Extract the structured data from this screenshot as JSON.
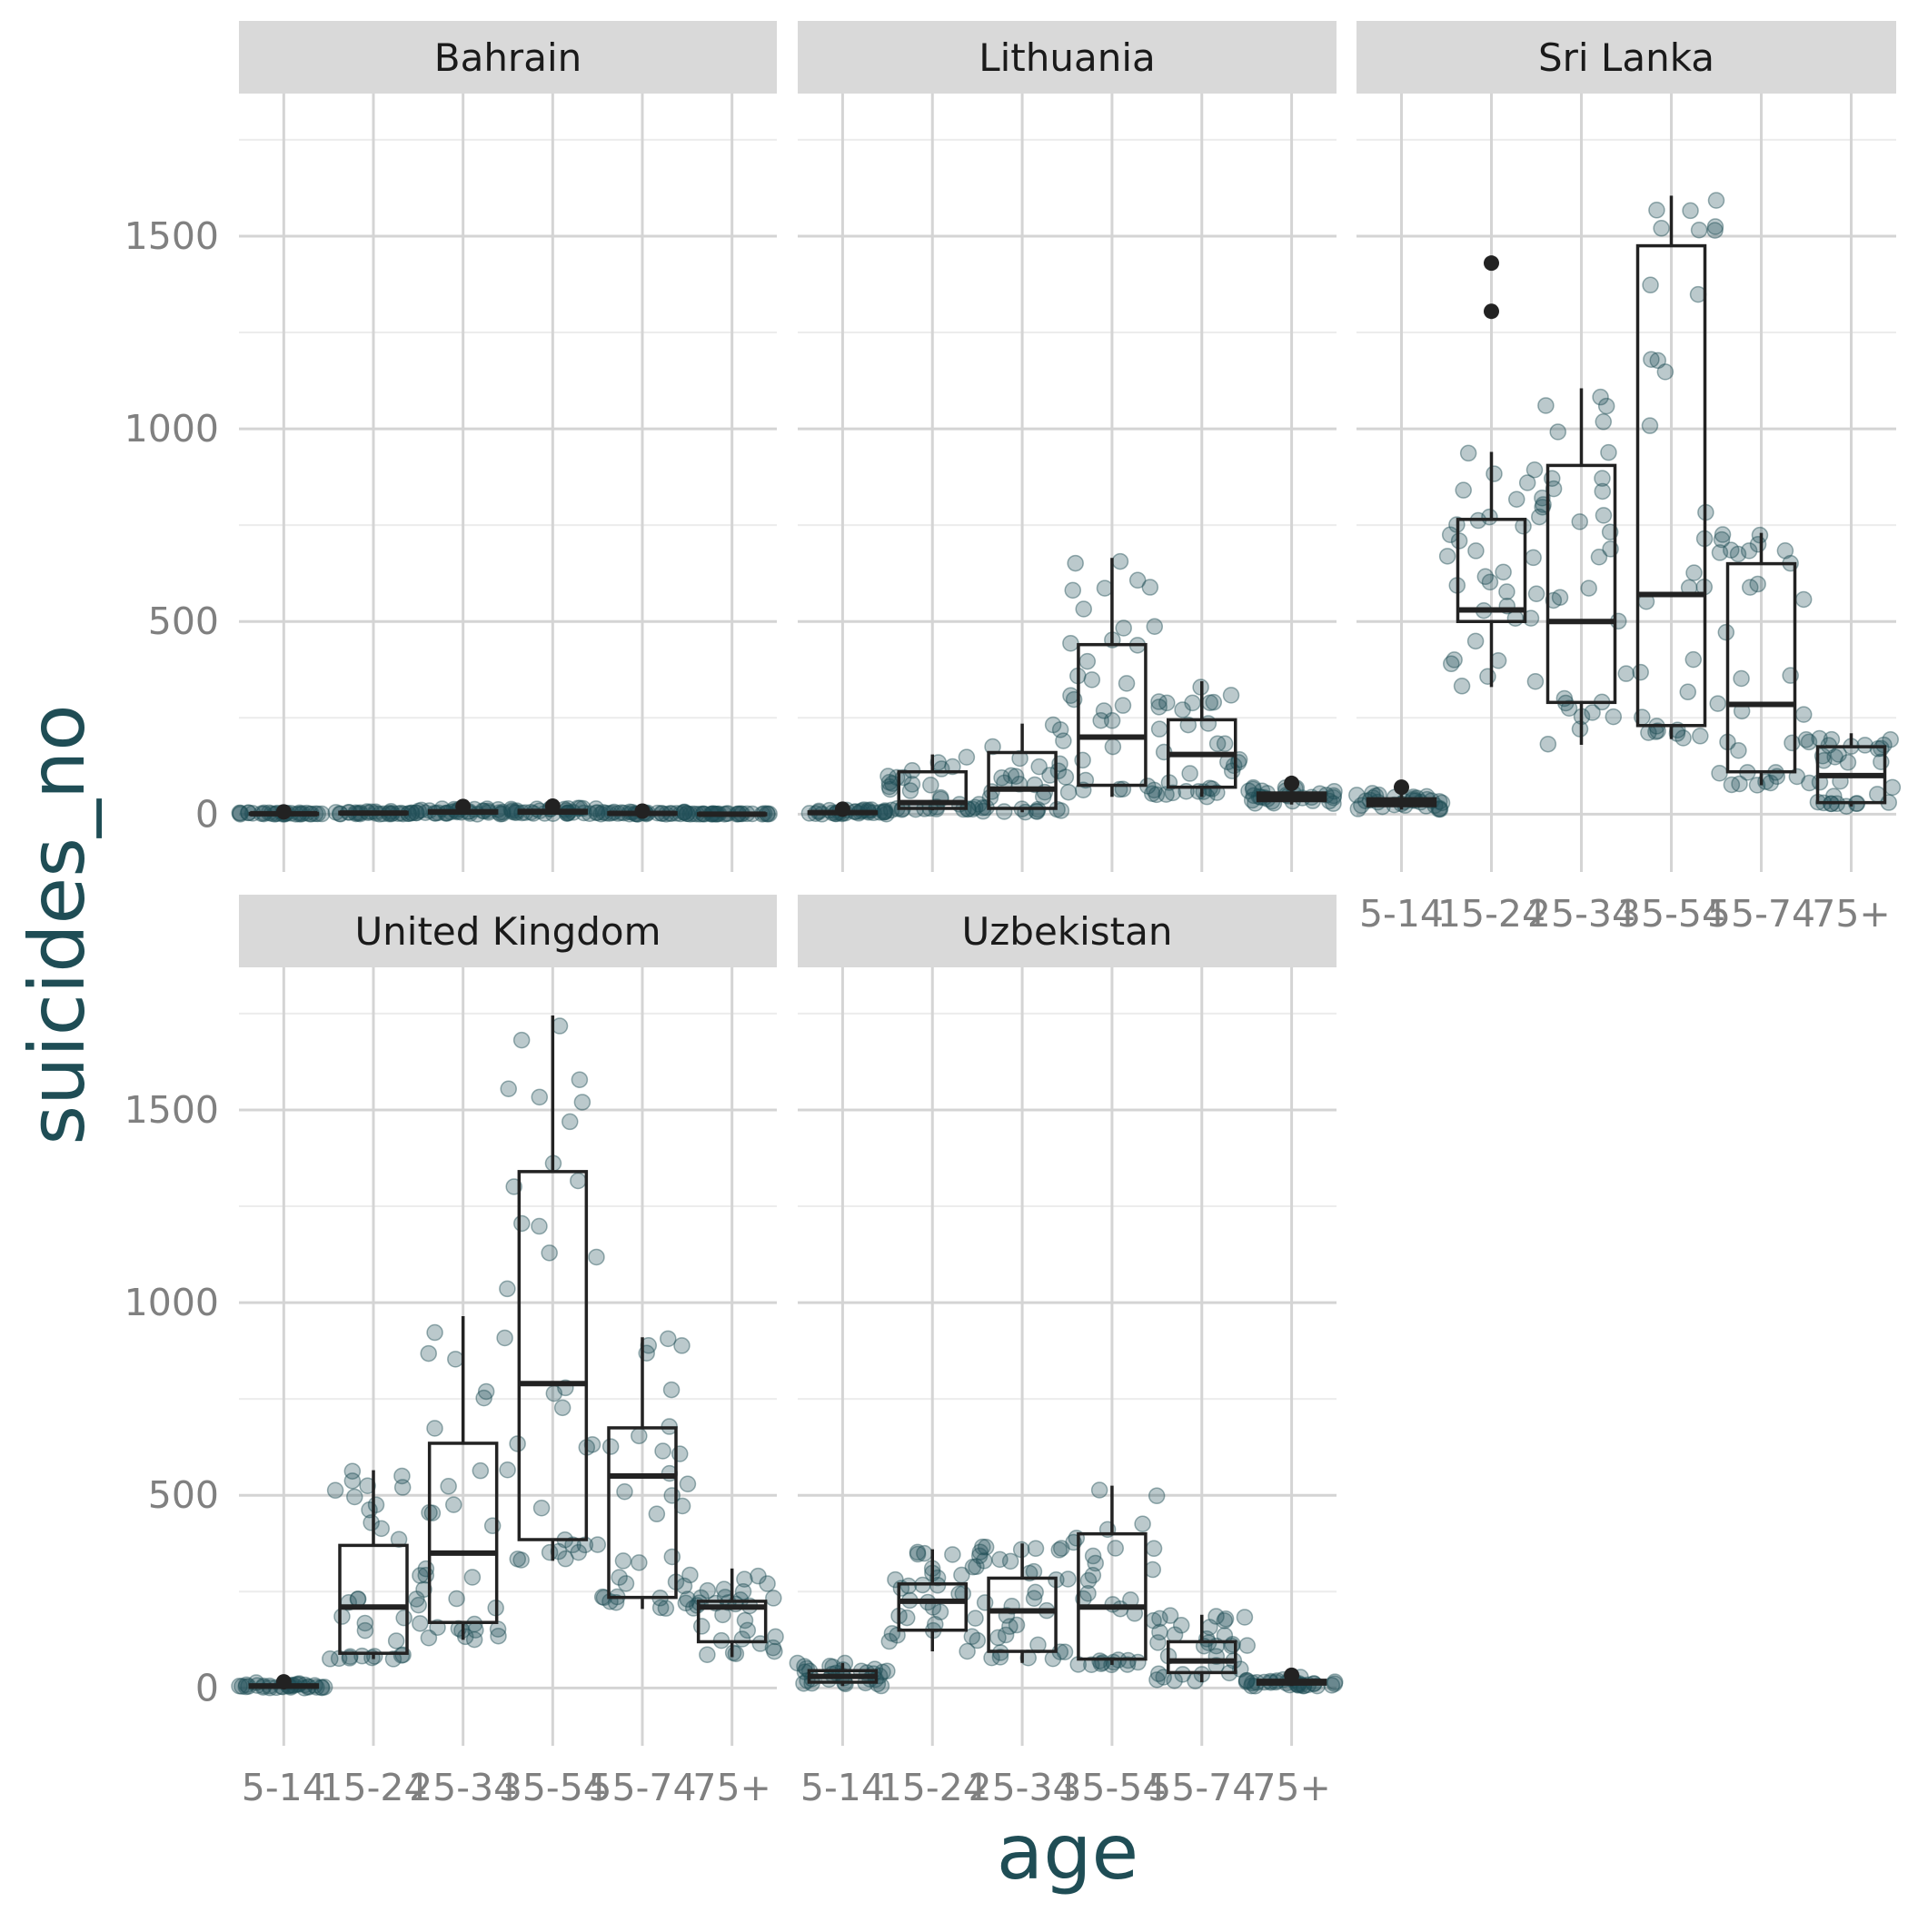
{
  "chart_data": {
    "type": "box",
    "style": "faceted boxplot with jittered points",
    "xlabel": "age",
    "ylabel": "suicides_no",
    "categories": [
      "5-14",
      "15-24",
      "25-34",
      "35-54",
      "55-74",
      "75+"
    ],
    "ylim": [
      -150,
      1870
    ],
    "yticks": [
      0,
      500,
      1000,
      1500
    ],
    "grid": true,
    "legend": "none",
    "colors": {
      "points": "#1f4d55",
      "box": "#222222",
      "strip_bg": "#d9d9d9",
      "grid_major": "#d4d4d4",
      "grid_minor": "#ececec",
      "axis_title": "#1f4d55",
      "tick_text": "#808080"
    },
    "facets": [
      {
        "name": "Bahrain",
        "boxes": [
          {
            "age": "5-14",
            "q1": 0,
            "median": 1,
            "q3": 2,
            "lower": 0,
            "upper": 4,
            "outliers": [
              6
            ]
          },
          {
            "age": "15-24",
            "q1": 1,
            "median": 3,
            "q3": 5,
            "lower": 0,
            "upper": 9,
            "outliers": []
          },
          {
            "age": "25-34",
            "q1": 3,
            "median": 6,
            "q3": 9,
            "lower": 0,
            "upper": 15,
            "outliers": [
              20
            ]
          },
          {
            "age": "35-54",
            "q1": 3,
            "median": 6,
            "q3": 10,
            "lower": 0,
            "upper": 17,
            "outliers": [
              21
            ]
          },
          {
            "age": "55-74",
            "q1": 0,
            "median": 2,
            "q3": 4,
            "lower": 0,
            "upper": 6,
            "outliers": [
              8
            ]
          },
          {
            "age": "75+",
            "q1": 0,
            "median": 0,
            "q3": 1,
            "lower": 0,
            "upper": 2,
            "outliers": []
          }
        ]
      },
      {
        "name": "Lithuania",
        "boxes": [
          {
            "age": "5-14",
            "q1": 2,
            "median": 4,
            "q3": 6,
            "lower": 0,
            "upper": 12,
            "outliers": [
              13
            ]
          },
          {
            "age": "15-24",
            "q1": 15,
            "median": 30,
            "q3": 110,
            "lower": 10,
            "upper": 155,
            "outliers": []
          },
          {
            "age": "25-34",
            "q1": 15,
            "median": 65,
            "q3": 160,
            "lower": 5,
            "upper": 235,
            "outliers": []
          },
          {
            "age": "35-54",
            "q1": 75,
            "median": 200,
            "q3": 440,
            "lower": 45,
            "upper": 665,
            "outliers": []
          },
          {
            "age": "55-74",
            "q1": 70,
            "median": 155,
            "q3": 245,
            "lower": 45,
            "upper": 345,
            "outliers": []
          },
          {
            "age": "75+",
            "q1": 35,
            "median": 45,
            "q3": 55,
            "lower": 25,
            "upper": 70,
            "outliers": [
              80
            ]
          }
        ]
      },
      {
        "name": "Sri Lanka",
        "boxes": [
          {
            "age": "5-14",
            "q1": 22,
            "median": 32,
            "q3": 40,
            "lower": 12,
            "upper": 55,
            "outliers": [
              70
            ]
          },
          {
            "age": "15-24",
            "q1": 500,
            "median": 530,
            "q3": 765,
            "lower": 330,
            "upper": 940,
            "outliers": [
              1305,
              1430
            ]
          },
          {
            "age": "25-34",
            "q1": 290,
            "median": 500,
            "q3": 905,
            "lower": 180,
            "upper": 1105,
            "outliers": []
          },
          {
            "age": "35-54",
            "q1": 230,
            "median": 570,
            "q3": 1475,
            "lower": 195,
            "upper": 1605,
            "outliers": []
          },
          {
            "age": "55-74",
            "q1": 110,
            "median": 285,
            "q3": 650,
            "lower": 75,
            "upper": 730,
            "outliers": []
          },
          {
            "age": "75+",
            "q1": 30,
            "median": 100,
            "q3": 175,
            "lower": 20,
            "upper": 210,
            "outliers": []
          }
        ]
      },
      {
        "name": "United Kingdom",
        "boxes": [
          {
            "age": "5-14",
            "q1": 2,
            "median": 5,
            "q3": 8,
            "lower": 0,
            "upper": 14,
            "outliers": [
              16
            ]
          },
          {
            "age": "15-24",
            "q1": 90,
            "median": 210,
            "q3": 370,
            "lower": 75,
            "upper": 565,
            "outliers": []
          },
          {
            "age": "25-34",
            "q1": 170,
            "median": 350,
            "q3": 635,
            "lower": 125,
            "upper": 965,
            "outliers": []
          },
          {
            "age": "35-54",
            "q1": 385,
            "median": 790,
            "q3": 1340,
            "lower": 330,
            "upper": 1745,
            "outliers": []
          },
          {
            "age": "55-74",
            "q1": 235,
            "median": 550,
            "q3": 675,
            "lower": 205,
            "upper": 910,
            "outliers": []
          },
          {
            "age": "75+",
            "q1": 120,
            "median": 210,
            "q3": 225,
            "lower": 80,
            "upper": 310,
            "outliers": []
          }
        ]
      },
      {
        "name": "Uzbekistan",
        "boxes": [
          {
            "age": "5-14",
            "q1": 15,
            "median": 30,
            "q3": 45,
            "lower": 5,
            "upper": 65,
            "outliers": []
          },
          {
            "age": "15-24",
            "q1": 150,
            "median": 225,
            "q3": 270,
            "lower": 95,
            "upper": 360,
            "outliers": []
          },
          {
            "age": "25-34",
            "q1": 95,
            "median": 200,
            "q3": 285,
            "lower": 65,
            "upper": 375,
            "outliers": []
          },
          {
            "age": "35-54",
            "q1": 75,
            "median": 210,
            "q3": 400,
            "lower": 60,
            "upper": 525,
            "outliers": []
          },
          {
            "age": "55-74",
            "q1": 40,
            "median": 70,
            "q3": 120,
            "lower": 15,
            "upper": 190,
            "outliers": []
          },
          {
            "age": "75+",
            "q1": 10,
            "median": 15,
            "q3": 20,
            "lower": 5,
            "upper": 30,
            "outliers": [
              33
            ]
          }
        ]
      }
    ]
  }
}
